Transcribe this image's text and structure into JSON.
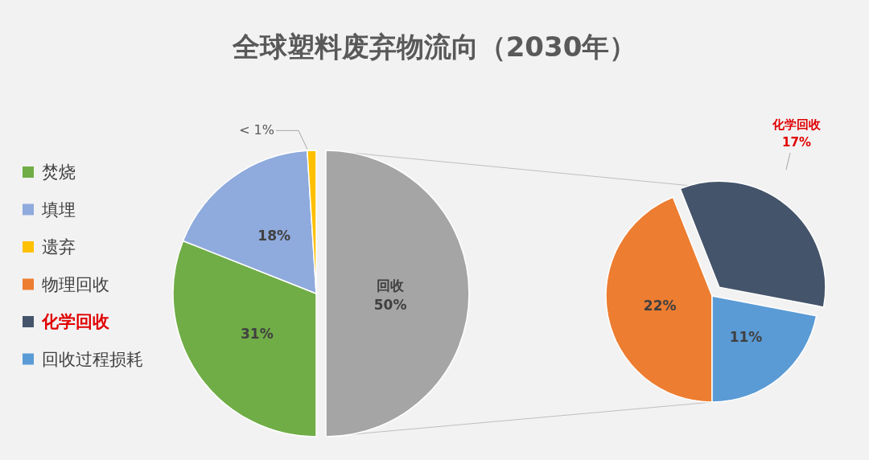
{
  "chart_data": [
    {
      "type": "pie",
      "title": "全球塑料废弃物流向（2030年）",
      "categories": [
        "焚烧",
        "填埋",
        "遗弃",
        "回收"
      ],
      "values": [
        31,
        18,
        1,
        50
      ],
      "colors": [
        "#70ad47",
        "#8faadc",
        "#ffc000",
        "#a5a5a5"
      ],
      "value_labels": [
        "31%",
        "18%",
        "< 1%",
        "50%"
      ],
      "legend": "left"
    },
    {
      "type": "pie",
      "categories": [
        "物理回收",
        "化学回收",
        "回收过程损耗"
      ],
      "values": [
        22,
        17,
        11
      ],
      "colors": [
        "#ed7d31",
        "#44546a",
        "#5b9bd5"
      ],
      "value_labels": [
        "22%",
        "17%",
        "11%"
      ],
      "legend": "left"
    }
  ]
}
